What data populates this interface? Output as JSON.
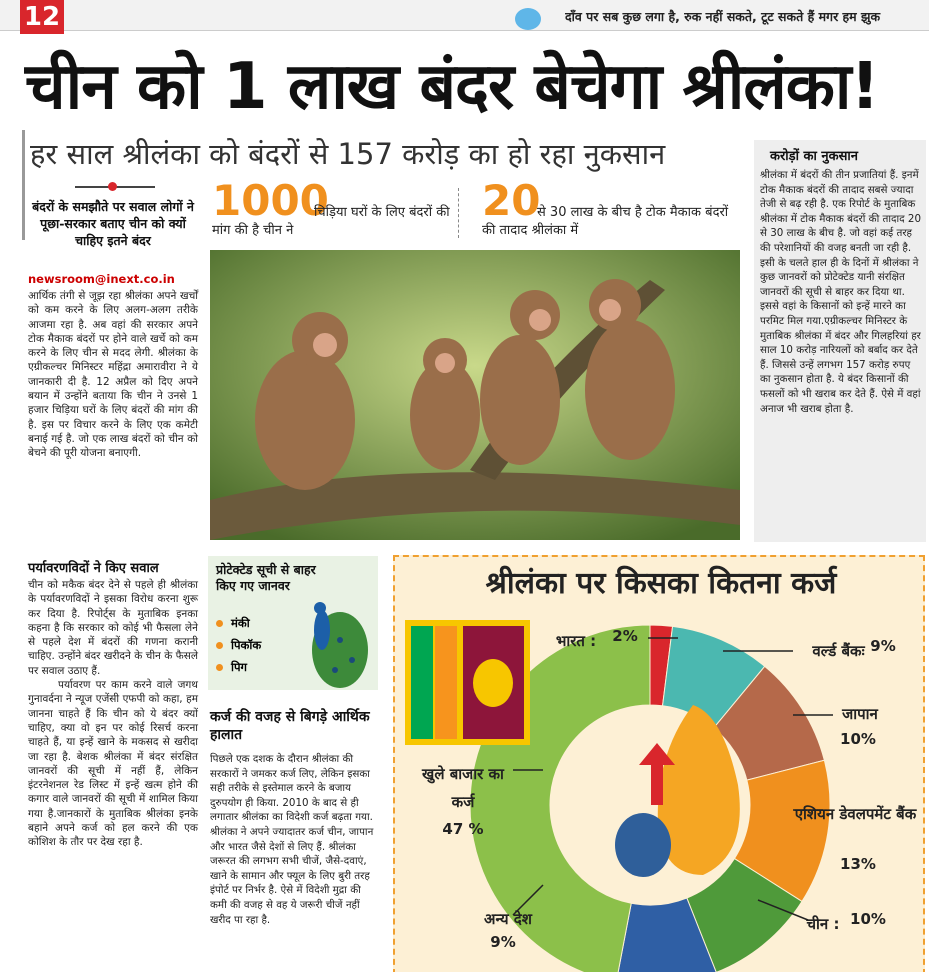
{
  "header": {
    "page_number": "12",
    "tagline": "दाँव पर सब कुछ लगा है, रुक नहीं सकते, टूट सकते हैं मगर हम झुक"
  },
  "headline": "चीन को 1 लाख बंदर बेचेगा श्रीलंका!",
  "subheadline": "हर साल श्रीलंका को बंदरों से 157 करोड़ का हो रहा नुकसान",
  "left_column": {
    "kicker": "बंदरों के समझौते पर सवाल लोगों ने पूछा-सरकार बताए चीन को क्यों चाहिए इतने बंदर",
    "byline": "newsroom@inext.co.in",
    "paragraphs": [
      "आर्थिक तंगी से जूझ रहा श्रीलंका अपने खर्चों को कम करने के लिए अलग-अलग तरीके आजमा रहा है. अब वहां की सरकार अपने टोक मैकाक बंदरों पर होने वाले खर्चे को कम करने के लिए चीन से मदद लेगी. श्रीलंका के एग्रीकल्चर मिनिस्टर महिंद्रा अमारावीरा ने ये जानकारी दी है. 12 अप्रैल को दिए अपने बयान में उन्होंने बताया कि चीन ने उनसे 1 हजार चिड़िया घरों के लिए बंदरों की मांग की है. इस पर विचार करने के लिए एक कमेटी बनाई गई है. जो एक लाख बंदरों को चीन को बेचने की पूरी योजना बनाएगी."
    ],
    "section_heading": "पर्यावरणविदों ने किए सवाल",
    "section_paragraphs": [
      "चीन को मकैक बंदर देने से पहले ही श्रीलंका के पर्यावरणविदों ने इसका विरोध करना शुरू कर दिया है. रिपोर्ट्स के मुताबिक इनका कहना है कि सरकार को कोई भी फैसला लेने से पहले देश में बंदरों की गणना करानी चाहिए. उन्होंने बंदर खरीदने के चीन के फैसले पर सवाल उठाए हैं.",
      "पर्यावरण पर काम करने वाले जगथ गुनावर्दना ने न्यूज एजेंसी एफपी को कहा, हम जानना चाहते हैं कि चीन को ये बंदर क्यों चाहिए, क्या वो इन पर कोई रिसर्च करना चाहते हैं, या इन्हें खाने के मकसद से खरीदा जा रहा है. बेशक श्रीलंका में बंदर संरक्षित जानवरों की सूची में नहीं हैं, लेकिन इंटरनेशनल रेड लिस्ट में इन्हें खत्म होने की कगार वाले जानवरों की सूची में शामिल किया गया है.जानकारों के मुताबिक श्रीलंका इनके बहाने अपने कर्ज को हल करने की एक कोशिश के तौर पर देख रहा है."
    ]
  },
  "stats": [
    {
      "number": "1000",
      "text": "चिड़िया घरों के लिए बंदरों की मांग की है चीन ने"
    },
    {
      "number": "20",
      "text": "से 30 लाख के बीच है टोक मैकाक बंदरों की तादाद श्रीलंका में"
    }
  ],
  "sidebar": {
    "heading": "करोड़ों का नुकसान",
    "text": "श्रीलंका में बंदरों की तीन प्रजातियां हैं. इनमें टोक मैकाक बंदरों की तादाद सबसे ज्यादा तेजी से बढ़ रही है. एक रिपोर्ट के मुताबिक श्रीलंका में टोक मैकाक बंदरों की तादाद 20 से 30 लाख के बीच है. जो वहां कई तरह की परेशानियों की वजह बनती जा रही है. इसी के चलते हाल ही के दिनों में श्रीलंका ने कुछ जानवरों को प्रोटेक्टेड यानी संरक्षित जानवरों की सूची से बाहर कर दिया था. इससे वहां के किसानों को इन्हें मारने का परमिट मिल गया.एग्रीकल्चर मिनिस्टर के मुताबिक श्रीलंका में बंदर और गिलहरियां हर साल 10 करोड़ नारियलों को बर्बाद कर देते हैं. जिससे उन्हें लगभग 157 करोड़ रुपए का नुकसान होता है. ये बंदर किसानों की फसलों को भी खराब कर देते हैं. ऐसे में वहां अनाज भी खराब होता है."
  },
  "protected_box": {
    "title": "प्रोटेक्टेड सूची से बाहर किए गए जानवर",
    "items": [
      "मंकी",
      "पिकॉक",
      "पिग"
    ]
  },
  "debt_section": {
    "heading": "कर्ज की वजह से बिगड़े आर्थिक हालात",
    "text": "पिछले एक दशक के दौरान श्रीलंका की सरकारों ने जमकर कर्ज लिए, लेकिन इसका सही तरीके से इस्तेमाल करने के बजाय दुरुपयोग ही किया. 2010 के बाद से ही लगातार श्रीलंका का विदेशी कर्ज बढ़ता गया. श्रीलंका ने अपने ज्यादातर कर्ज चीन, जापान और भारत जैसे देशों से लिए हैं. श्रीलंका जरूरत की लगभग सभी चीजें, जैसे-दवाएं, खाने के सामान और फ्यूल के लिए बुरी तरह इंपोर्ट पर निर्भर है. ऐसे में विदेशी मुद्रा की कमी की वजह से वह ये जरूरी चीजें नहीं खरीद पा रहा है."
  },
  "chart_data": {
    "type": "pie",
    "donut": true,
    "title": "श्रीलंका पर किसका कितना कर्ज",
    "categories": [
      "भारत :",
      "वर्ल्ड बैंकः",
      "जापान",
      "एशियन डेवलपमेंट बैंक",
      "चीन :",
      "अन्य देश",
      "खुले बाजार का कर्ज"
    ],
    "values": [
      2,
      9,
      10,
      13,
      10,
      9,
      47
    ],
    "value_labels": [
      "2%",
      "9%",
      "10%",
      "13%",
      "10%",
      "9%",
      "47 %"
    ],
    "colors": [
      "#d9262c",
      "#4bb8b0",
      "#b5694a",
      "#f0901e",
      "#4f9a3a",
      "#2f5fa5",
      "#8cc04a"
    ]
  }
}
